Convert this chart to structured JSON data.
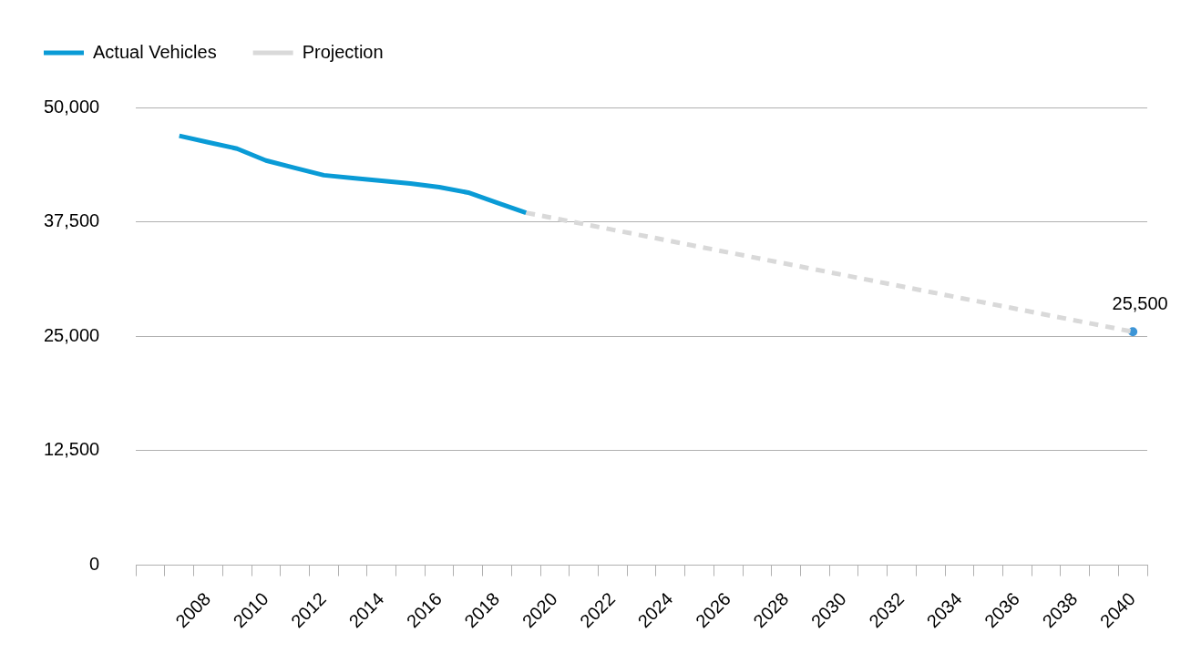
{
  "chart_data": {
    "type": "line",
    "categories": [
      null,
      null,
      "2008",
      null,
      "2010",
      null,
      "2012",
      null,
      "2014",
      null,
      "2016",
      null,
      "2018",
      null,
      "2020",
      null,
      "2022",
      null,
      "2024",
      null,
      "2026",
      null,
      "2028",
      null,
      "2030",
      null,
      "2032",
      null,
      "2034",
      null,
      "2036",
      null,
      "2038",
      null,
      "2040"
    ],
    "series": [
      {
        "name": "Actual Vehicles",
        "color": "#0a9bd6",
        "line_style": "solid",
        "marker": "none",
        "values": [
          null,
          46900,
          46200,
          45500,
          44200,
          43400,
          42600,
          42300,
          42000,
          41700,
          41300,
          40700,
          39600,
          38500,
          null,
          null,
          null,
          null,
          null,
          null,
          null,
          null,
          null,
          null,
          null,
          null,
          null,
          null,
          null,
          null,
          null,
          null,
          null,
          null,
          null
        ]
      },
      {
        "name": "Projection",
        "color": "#d9d9d9",
        "line_style": "dashed",
        "marker": "none",
        "values": [
          null,
          null,
          null,
          null,
          null,
          null,
          null,
          null,
          null,
          null,
          null,
          null,
          null,
          38500,
          null,
          null,
          null,
          null,
          null,
          null,
          null,
          null,
          null,
          null,
          null,
          null,
          null,
          null,
          null,
          null,
          null,
          null,
          null,
          null,
          25500
        ]
      },
      {
        "type": "scatter",
        "color": "#3d95d6",
        "marker": "circle",
        "values": [
          null,
          null,
          null,
          null,
          null,
          null,
          null,
          null,
          null,
          null,
          null,
          null,
          null,
          null,
          null,
          null,
          null,
          null,
          null,
          null,
          null,
          null,
          null,
          null,
          null,
          null,
          null,
          null,
          null,
          null,
          null,
          null,
          null,
          null,
          25500
        ],
        "value_labels": [
          null,
          null,
          null,
          null,
          null,
          null,
          null,
          null,
          null,
          null,
          null,
          null,
          null,
          null,
          null,
          null,
          null,
          null,
          null,
          null,
          null,
          null,
          null,
          null,
          null,
          null,
          null,
          null,
          null,
          null,
          null,
          null,
          null,
          null,
          "25,500"
        ]
      }
    ],
    "ylim": [
      0,
      50000
    ],
    "yticks": [
      0,
      {
        "value": 12500,
        "label": "12,500"
      },
      {
        "value": 25000,
        "label": "25,000"
      },
      {
        "value": 37500,
        "label": "37,500"
      },
      {
        "value": 50000,
        "label": "50,000"
      }
    ],
    "grid": "y",
    "legend": "top left"
  }
}
